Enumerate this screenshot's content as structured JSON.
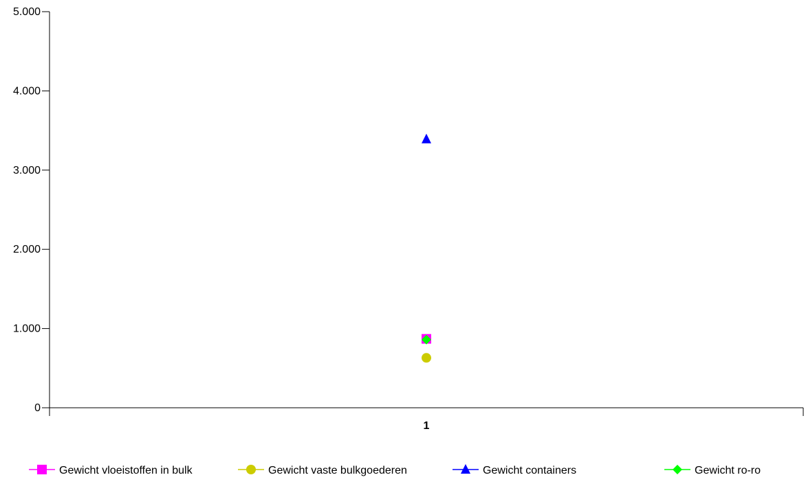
{
  "chart_data": {
    "type": "scatter",
    "categories": [
      "1"
    ],
    "ylim": [
      0,
      5000
    ],
    "yticks": [
      0,
      1000,
      2000,
      3000,
      4000,
      5000
    ],
    "ytick_labels": [
      "0",
      "1.000",
      "2.000",
      "3.000",
      "4.000",
      "5.000"
    ],
    "grid": false,
    "legend_position": "bottom",
    "series": [
      {
        "name": "Gewicht vloeistoffen in bulk",
        "marker": "square",
        "color": "#ff00ff",
        "values": [
          870
        ]
      },
      {
        "name": "Gewicht vaste bulkgoederen",
        "marker": "circle",
        "color": "#cccc00",
        "values": [
          630
        ]
      },
      {
        "name": "Gewicht containers",
        "marker": "triangle",
        "color": "#0000ff",
        "values": [
          3390
        ]
      },
      {
        "name": "Gewicht ro-ro",
        "marker": "diamond",
        "color": "#00ff00",
        "values": [
          860
        ]
      }
    ]
  }
}
